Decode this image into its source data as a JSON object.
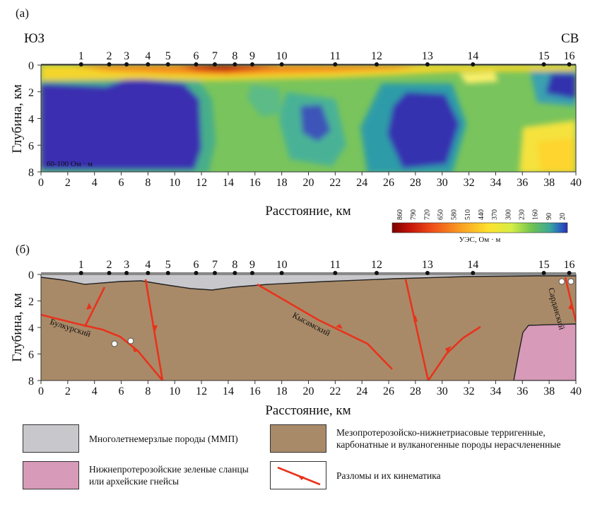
{
  "panel_a": {
    "label": "(a)",
    "dir_left": "ЮЗ",
    "dir_right": "СВ",
    "ylabel": "Глубина, км",
    "xlabel": "Расстояние, км",
    "note": "60-100 Ом · м",
    "stations": [
      "1",
      "2",
      "3",
      "4",
      "5",
      "6",
      "7",
      "8",
      "9",
      "10",
      "11",
      "12",
      "13",
      "14",
      "15",
      "16"
    ],
    "station_km": [
      3,
      5.1,
      6.4,
      8,
      9.5,
      11.6,
      13,
      14.5,
      15.8,
      18,
      22,
      25.1,
      28.9,
      32.3,
      37.6,
      39.5
    ],
    "colorbar": {
      "title": "УЭС, Ом · м",
      "ticks": [
        "860",
        "790",
        "720",
        "650",
        "580",
        "510",
        "440",
        "370",
        "300",
        "230",
        "160",
        "90",
        "20"
      ],
      "colors": [
        "#7a0000",
        "#b30000",
        "#e32a0a",
        "#f25a1c",
        "#f7841f",
        "#fbab22",
        "#fdd029",
        "#fef33a",
        "#d6ee45",
        "#94d146",
        "#4fb96a",
        "#2f8fc4",
        "#2a2fae"
      ]
    }
  },
  "panel_b": {
    "label": "(б)",
    "ylabel": "Глубина, км",
    "xlabel": "Расстояние, км",
    "fault_labels": [
      "Булкурский",
      "Кысамский",
      "Сарданский"
    ]
  },
  "x_ticks": [
    "0",
    "2",
    "4",
    "6",
    "8",
    "10",
    "12",
    "14",
    "16",
    "18",
    "20",
    "22",
    "24",
    "26",
    "28",
    "30",
    "32",
    "34",
    "36",
    "38",
    "40"
  ],
  "y_ticks": [
    "0",
    "2",
    "4",
    "6",
    "8"
  ],
  "legend": [
    {
      "text_lines": [
        "Многолетнемерзлые породы (ММП)"
      ],
      "color": "#c8c8cc"
    },
    {
      "text_lines": [
        "Мезопротерозойско-нижнетриасовые терригенные,",
        "карбонатные и вулканогенные породы нерасчлененные"
      ],
      "color": "#a98a68"
    },
    {
      "text_lines": [
        "Нижнепротерозойские зеленые сланцы",
        "или архейские гнейсы"
      ],
      "color": "#d79ab8"
    },
    {
      "text_lines": [
        "Разломы и их кинематика"
      ],
      "color": "#e8331c"
    }
  ]
}
